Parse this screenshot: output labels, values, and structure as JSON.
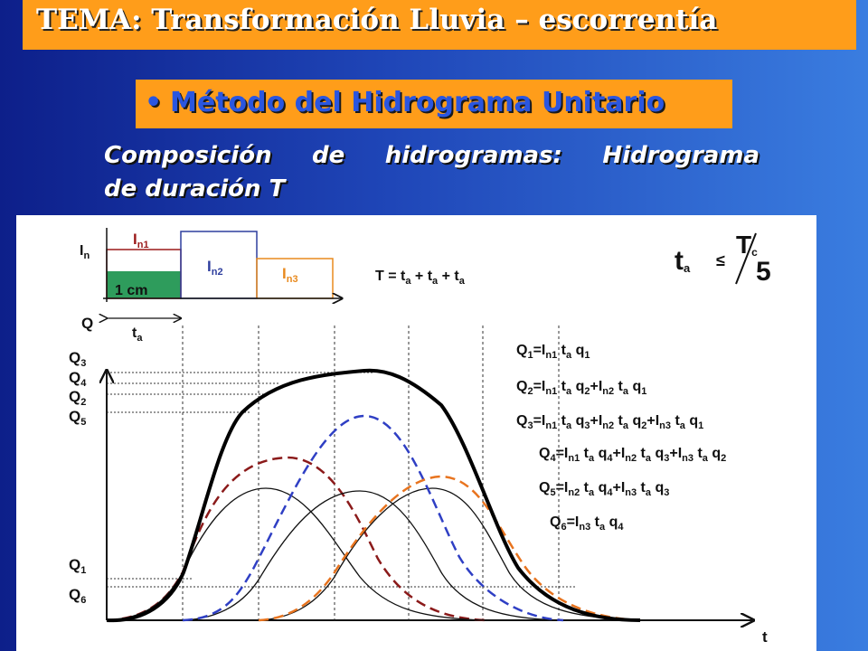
{
  "header": {
    "title": "TEMA: Transformación Lluvia – escorrentía"
  },
  "method": {
    "bullet": "•",
    "label": "Método del Hidrograma Unitario"
  },
  "subtitle": {
    "line1": "Composición de hidrogramas: Hidrograma",
    "line2": "de duración T"
  },
  "hyetograph": {
    "axis_label": "I",
    "axis_sub": "n",
    "depth_label": "1 cm",
    "blocks": [
      {
        "main": "I",
        "sub": "n1",
        "color": "#9b1a1a"
      },
      {
        "main": "I",
        "sub": "n2",
        "color": "#2f3f9e"
      },
      {
        "main": "I",
        "sub": "n3",
        "color": "#e88a1f"
      }
    ],
    "unit_fill": "#2e9c5c",
    "ta_label": "t",
    "ta_sub": "a"
  },
  "duration_formula": {
    "parts": [
      {
        "t": "T = t"
      },
      {
        "s": "a"
      },
      {
        "t": " + t"
      },
      {
        "s": "a"
      },
      {
        "t": " + t"
      },
      {
        "s": "a"
      }
    ]
  },
  "condition": {
    "lhs": "t",
    "lhs_sub": "a",
    "op": "≤",
    "num": "T",
    "num_sub": "c",
    "den": "5"
  },
  "axes": {
    "y": "Q",
    "x": "t"
  },
  "q_labels": [
    {
      "main": "Q",
      "sub": "3"
    },
    {
      "main": "Q",
      "sub": "4"
    },
    {
      "main": "Q",
      "sub": "2"
    },
    {
      "main": "Q",
      "sub": "5"
    },
    {
      "main": "Q",
      "sub": "1"
    },
    {
      "main": "Q",
      "sub": "6"
    }
  ],
  "equations": [
    {
      "parts": [
        {
          "t": "Q"
        },
        {
          "s": "1"
        },
        {
          "t": "=I"
        },
        {
          "s": "n1"
        },
        {
          "t": " t"
        },
        {
          "s": "a"
        },
        {
          "t": " q"
        },
        {
          "s": "1"
        }
      ]
    },
    {
      "parts": [
        {
          "t": "Q"
        },
        {
          "s": "2"
        },
        {
          "t": "=I"
        },
        {
          "s": "n1"
        },
        {
          "t": " t"
        },
        {
          "s": "a"
        },
        {
          "t": " q"
        },
        {
          "s": "2"
        },
        {
          "t": "+I"
        },
        {
          "s": "n2"
        },
        {
          "t": " t"
        },
        {
          "s": "a"
        },
        {
          "t": " q"
        },
        {
          "s": "1"
        }
      ]
    },
    {
      "parts": [
        {
          "t": "Q"
        },
        {
          "s": "3"
        },
        {
          "t": "=I"
        },
        {
          "s": "n1"
        },
        {
          "t": " t"
        },
        {
          "s": "a"
        },
        {
          "t": " q"
        },
        {
          "s": "3"
        },
        {
          "t": "+I"
        },
        {
          "s": "n2"
        },
        {
          "t": " t"
        },
        {
          "s": "a"
        },
        {
          "t": " q"
        },
        {
          "s": "2"
        },
        {
          "t": "+I"
        },
        {
          "s": "n3"
        },
        {
          "t": " t"
        },
        {
          "s": "a"
        },
        {
          "t": " q"
        },
        {
          "s": "1"
        }
      ]
    },
    {
      "parts": [
        {
          "t": "Q"
        },
        {
          "s": "4"
        },
        {
          "t": "=I"
        },
        {
          "s": "n1"
        },
        {
          "t": " t"
        },
        {
          "s": "a"
        },
        {
          "t": " q"
        },
        {
          "s": "4"
        },
        {
          "t": "+I"
        },
        {
          "s": "n2"
        },
        {
          "t": " t"
        },
        {
          "s": "a"
        },
        {
          "t": " q"
        },
        {
          "s": "3"
        },
        {
          "t": "+I"
        },
        {
          "s": "n3"
        },
        {
          "t": " t"
        },
        {
          "s": "a"
        },
        {
          "t": " q"
        },
        {
          "s": "2"
        }
      ]
    },
    {
      "parts": [
        {
          "t": "Q"
        },
        {
          "s": "5"
        },
        {
          "t": "=I"
        },
        {
          "s": "n2"
        },
        {
          "t": " t"
        },
        {
          "s": "a"
        },
        {
          "t": " q"
        },
        {
          "s": "4"
        },
        {
          "t": "+I"
        },
        {
          "s": "n3"
        },
        {
          "t": " t"
        },
        {
          "s": "a"
        },
        {
          "t": " q"
        },
        {
          "s": "3"
        }
      ]
    },
    {
      "parts": [
        {
          "t": "Q"
        },
        {
          "s": "6"
        },
        {
          "t": "=I"
        },
        {
          "s": "n3"
        },
        {
          "t": " t"
        },
        {
          "s": "a"
        },
        {
          "t": " q"
        },
        {
          "s": "4"
        }
      ]
    }
  ],
  "curve_colors": {
    "unit": "#111111",
    "red": "#8b1a1a",
    "blue": "#2f3fc4",
    "orange": "#e8741f",
    "total": "#000000"
  }
}
